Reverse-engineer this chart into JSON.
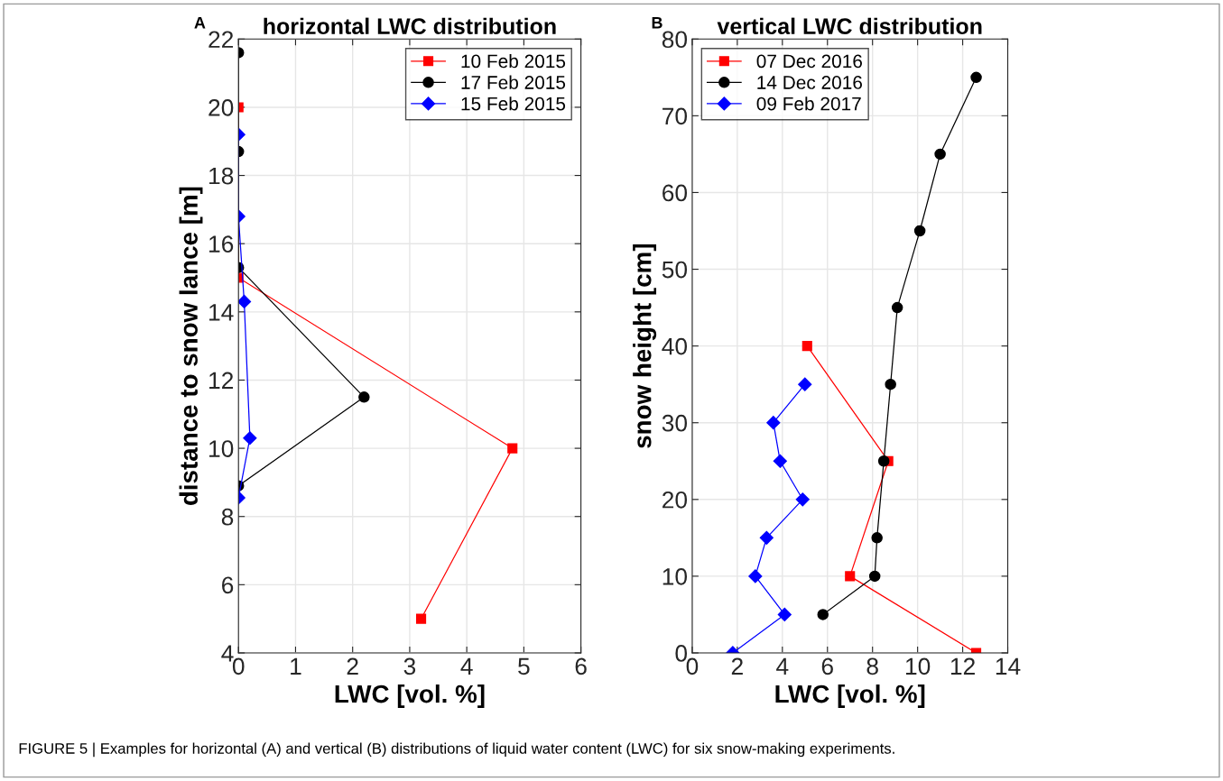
{
  "chart_data": [
    {
      "type": "line",
      "title": "horizontal LWC distribution",
      "xlabel": "LWC [vol. %]",
      "ylabel": "distance to snow lance [m]",
      "xlim": [
        0,
        6
      ],
      "xticks": [
        0,
        1,
        2,
        3,
        4,
        5,
        6
      ],
      "ylim": [
        4,
        22
      ],
      "yticks": [
        4,
        6,
        8,
        10,
        12,
        14,
        16,
        18,
        20,
        22
      ],
      "grid": true,
      "legend": "top right",
      "annotations": [
        "A",
        "FIGURE 5 | Examples for horizontal (A) and vertical (B) distributions of liquid water content (LWC) for six snow-making experiments."
      ],
      "series": [
        {
          "name": "10 Feb 2015",
          "color": "#ff0000",
          "marker": "square",
          "x": [
            0,
            0,
            4.8,
            3.2
          ],
          "values": [
            20,
            15,
            10,
            5
          ]
        },
        {
          "name": "17 Feb 2015",
          "color": "#000000",
          "marker": "circle",
          "x": [
            0,
            0,
            0,
            2.2,
            0
          ],
          "values": [
            21.6,
            18.7,
            15.3,
            11.5,
            8.9
          ]
        },
        {
          "name": "15 Feb 2015",
          "color": "#0000ff",
          "marker": "diamond",
          "x": [
            0,
            0,
            0.1,
            0.2,
            0
          ],
          "values": [
            19.2,
            16.8,
            14.3,
            10.3,
            8.55
          ]
        }
      ]
    },
    {
      "type": "line",
      "title": "vertical LWC distribution",
      "xlabel": "LWC [vol. %]",
      "ylabel": "snow height [cm]",
      "xlim": [
        0,
        14
      ],
      "xticks": [
        0,
        2,
        4,
        6,
        8,
        10,
        12,
        14
      ],
      "ylim": [
        0,
        80
      ],
      "yticks": [
        0,
        10,
        20,
        30,
        40,
        50,
        60,
        70,
        80
      ],
      "grid": true,
      "legend": "top left",
      "annotations": [
        "B"
      ],
      "series": [
        {
          "name": "07 Dec 2016",
          "color": "#ff0000",
          "marker": "square",
          "x": [
            5.1,
            8.7,
            7.0,
            12.6
          ],
          "values": [
            40,
            25,
            10,
            0
          ]
        },
        {
          "name": "14 Dec 2016",
          "color": "#000000",
          "marker": "circle",
          "x": [
            5.8,
            8.1,
            8.2,
            8.5,
            8.8,
            9.1,
            10.1,
            11.0,
            12.6
          ],
          "values": [
            5,
            10,
            15,
            25,
            35,
            45,
            55,
            65,
            75
          ]
        },
        {
          "name": "09 Feb 2017",
          "color": "#0000ff",
          "marker": "diamond",
          "x": [
            1.8,
            4.1,
            2.8,
            3.3,
            4.9,
            3.9,
            3.6,
            5.0
          ],
          "values": [
            0,
            5,
            10,
            15,
            20,
            25,
            30,
            35
          ]
        }
      ]
    }
  ]
}
